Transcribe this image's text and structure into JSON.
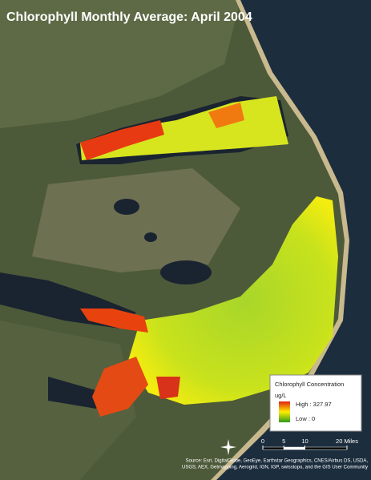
{
  "header": {
    "title": "Chlorophyll Monthly Average: April 2004"
  },
  "legend": {
    "title": "Chlorophyll Concentration",
    "units": "ug/L",
    "high": "High : 327.97",
    "low": "Low : 0"
  },
  "scale_bar": {
    "ticks": [
      0,
      5,
      10,
      {
        "value": 20,
        "label": "20 Miles"
      }
    ]
  },
  "attribution": [
    "Source: Esri, DigitalGlobe, GeoEye, Earthstar Geographics, CNES/Airbus DS, USDA,",
    "USGS, AEX, Getmapping, Aerogrid, IGN, IGP, swisstopo, and the GIS User Community"
  ]
}
